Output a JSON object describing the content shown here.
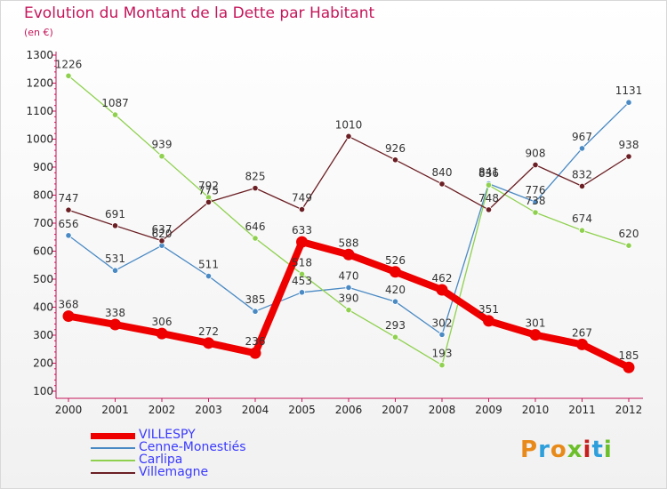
{
  "title": "Evolution du Montant de la Dette par Habitant",
  "unit": "(en €)",
  "brand": "Proxiti",
  "brand_colors": [
    "#e88a1a",
    "#2f9fdc",
    "#e88a1a",
    "#6cbf2a",
    "#c71f1f",
    "#2f9fdc",
    "#6cbf2a"
  ],
  "chart_data": {
    "type": "line",
    "x": [
      2000,
      2001,
      2002,
      2003,
      2004,
      2005,
      2006,
      2007,
      2008,
      2009,
      2010,
      2011,
      2012
    ],
    "ylim": [
      100,
      1300
    ],
    "yticks": [
      100,
      200,
      300,
      400,
      500,
      600,
      700,
      800,
      900,
      1000,
      1100,
      1200,
      1300
    ],
    "grid": false,
    "legend_position": "bottom-left",
    "series": [
      {
        "name": "VILLESPY",
        "color": "#ee0000",
        "values": [
          368,
          338,
          306,
          272,
          236,
          633,
          588,
          526,
          462,
          351,
          301,
          267,
          185
        ]
      },
      {
        "name": "Cenne-Monestiés",
        "color": "#4a8ac4",
        "values": [
          656,
          531,
          620,
          511,
          385,
          453,
          470,
          420,
          302,
          841,
          776,
          967,
          1131
        ]
      },
      {
        "name": "Carlipa",
        "color": "#8fd14f",
        "values": [
          1226,
          1087,
          939,
          792,
          646,
          518,
          390,
          293,
          193,
          836,
          738,
          674,
          620
        ]
      },
      {
        "name": "Villemagne",
        "color": "#6b1f24",
        "values": [
          747,
          691,
          637,
          775,
          825,
          749,
          1010,
          926,
          840,
          748,
          908,
          832,
          938
        ]
      }
    ]
  }
}
